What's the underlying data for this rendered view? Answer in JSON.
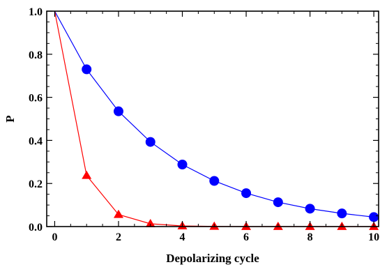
{
  "chart_data": {
    "type": "line",
    "xlabel": "Depolarizing cycle",
    "ylabel": "P",
    "xlim": [
      -0.25,
      10.15
    ],
    "ylim": [
      0,
      1.0
    ],
    "xticks": [
      0,
      2,
      4,
      6,
      8,
      10
    ],
    "yticks": [
      0.0,
      0.2,
      0.4,
      0.6,
      0.8,
      1.0
    ],
    "ytick_labels": [
      "0.0",
      "0.2",
      "0.4",
      "0.6",
      "0.8",
      "1.0"
    ],
    "grid": false,
    "series": [
      {
        "marker": "circle",
        "color": "#0000ff",
        "x": [
          0,
          1,
          2,
          3,
          4,
          5,
          6,
          7,
          8,
          9,
          10
        ],
        "y": [
          1.0,
          0.73,
          0.535,
          0.393,
          0.288,
          0.212,
          0.155,
          0.113,
          0.083,
          0.061,
          0.044
        ]
      },
      {
        "marker": "triangle",
        "color": "#ff0000",
        "x": [
          0,
          1,
          2,
          3,
          4,
          5,
          6,
          7,
          8,
          9,
          10
        ],
        "y": [
          1.0,
          0.237,
          0.056,
          0.013,
          0.003,
          0.001,
          0.0,
          0.0,
          0.0,
          0.0,
          0.0
        ]
      }
    ]
  }
}
